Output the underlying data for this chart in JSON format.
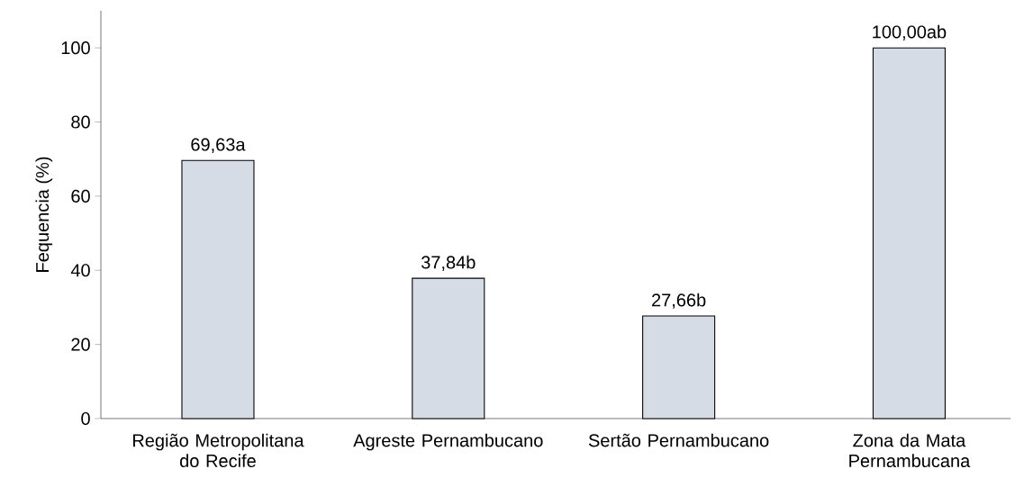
{
  "chart_data": {
    "type": "bar",
    "ylabel": "Fequencia (%)",
    "categories": [
      "Região Metropolitana do Recife",
      "Agreste Pernambucano",
      "Sertão Pernambucano",
      "Zona da Mata Pernambucana"
    ],
    "values": [
      69.63,
      37.84,
      27.66,
      100.0
    ],
    "value_labels": [
      "69,63a",
      "37,84b",
      "27,66b",
      "100,00ab"
    ],
    "color": "#d6dce5",
    "ylim": [
      0,
      110
    ],
    "yticks": [
      0,
      20,
      40,
      60,
      80,
      100
    ]
  }
}
